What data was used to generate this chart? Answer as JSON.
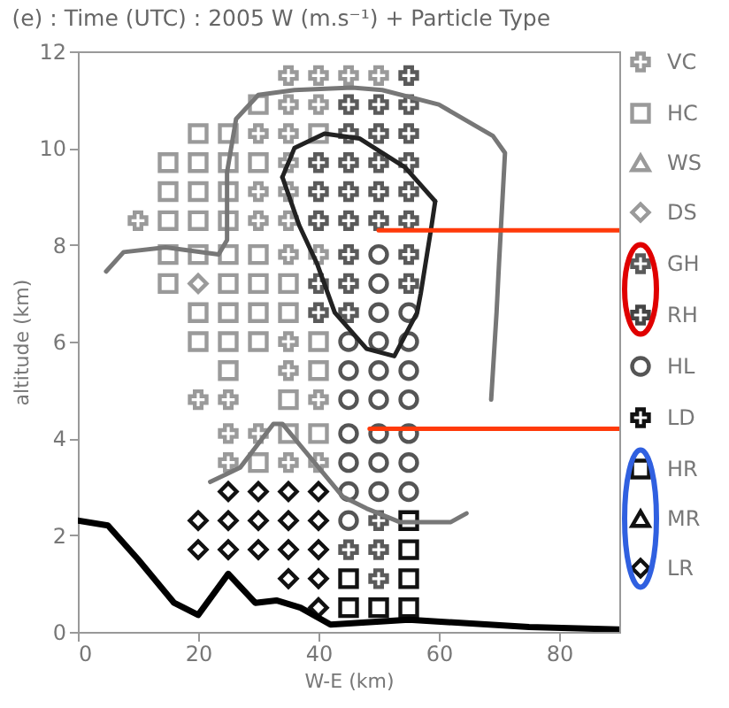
{
  "chart_data": {
    "type": "scatter",
    "title": "(e) : Time (UTC) : 2005 W (m.s⁻¹) + Particle Type",
    "xlabel": "W-E (km)",
    "ylabel": "altitude (km)",
    "xlim": [
      0,
      90
    ],
    "ylim": [
      0,
      12
    ],
    "xticks": [
      0,
      20,
      40,
      60,
      80
    ],
    "yticks": [
      0,
      2,
      4,
      6,
      8,
      10,
      12
    ],
    "legend": "right",
    "series": [
      {
        "name": "VC",
        "color": "#9a9a9a",
        "marker": "cross",
        "x": [
          35,
          40,
          45,
          50,
          35,
          40,
          30,
          35,
          35,
          30,
          35,
          10,
          30,
          35,
          35,
          40,
          35,
          35,
          20,
          25,
          40,
          25,
          30,
          25,
          35,
          40
        ],
        "values": [
          11.5,
          11.5,
          11.5,
          11.5,
          10.9,
          10.9,
          10.3,
          10.3,
          9.7,
          9.1,
          9.1,
          8.5,
          8.5,
          8.5,
          7.8,
          7.8,
          6.0,
          5.4,
          4.8,
          4.8,
          4.8,
          4.1,
          4.1,
          3.5,
          3.5,
          3.5
        ]
      },
      {
        "name": "HC",
        "color": "#9a9a9a",
        "marker": "square",
        "x": [
          30,
          20,
          25,
          40,
          15,
          20,
          25,
          30,
          15,
          20,
          25,
          15,
          20,
          25,
          15,
          20,
          25,
          30,
          15,
          25,
          30,
          35,
          20,
          25,
          30,
          35,
          20,
          25,
          30,
          40,
          25,
          40,
          35,
          35,
          40,
          30
        ],
        "values": [
          10.9,
          10.3,
          10.3,
          10.3,
          9.7,
          9.7,
          9.7,
          9.7,
          9.1,
          9.1,
          9.1,
          8.5,
          8.5,
          8.5,
          7.8,
          7.8,
          7.8,
          7.8,
          7.2,
          7.2,
          7.2,
          7.2,
          6.6,
          6.6,
          6.6,
          6.6,
          6.0,
          6.0,
          6.0,
          6.0,
          5.4,
          5.4,
          4.8,
          4.1,
          4.1,
          3.5
        ]
      },
      {
        "name": "WS",
        "color": "#9a9a9a",
        "marker": "triangle"
      },
      {
        "name": "DS",
        "color": "#9a9a9a",
        "marker": "diamond",
        "x": [
          20
        ],
        "values": [
          7.2
        ]
      },
      {
        "name": "GH",
        "color": "#5a5a5a",
        "marker": "cross",
        "x": [
          55,
          45,
          50,
          55,
          45,
          50,
          55,
          40,
          45,
          50,
          55,
          40,
          45,
          50,
          55,
          40,
          45,
          50,
          55,
          45,
          55,
          40,
          45,
          55,
          40,
          45,
          50,
          45,
          50,
          50
        ],
        "values": [
          11.5,
          10.9,
          10.9,
          10.9,
          10.3,
          10.3,
          10.3,
          9.7,
          9.7,
          9.7,
          9.7,
          9.1,
          9.1,
          9.1,
          9.1,
          8.5,
          8.5,
          8.5,
          8.5,
          7.8,
          7.8,
          7.2,
          7.2,
          7.2,
          6.6,
          6.6,
          2.3,
          1.7,
          1.7,
          1.1
        ]
      },
      {
        "name": "RH",
        "color": "#444444",
        "marker": "cross"
      },
      {
        "name": "HL",
        "color": "#555555",
        "marker": "circle",
        "x": [
          50,
          50,
          50,
          55,
          45,
          50,
          55,
          45,
          50,
          55,
          45,
          50,
          55,
          45,
          50,
          55,
          45,
          50,
          55,
          45,
          50,
          55,
          45
        ],
        "values": [
          7.8,
          7.2,
          6.6,
          6.6,
          6.0,
          6.0,
          6.0,
          5.4,
          5.4,
          5.4,
          4.8,
          4.8,
          4.8,
          4.1,
          4.1,
          4.1,
          3.5,
          3.5,
          3.5,
          2.9,
          2.9,
          2.9,
          2.3
        ]
      },
      {
        "name": "LD",
        "color": "#111111",
        "marker": "cross"
      },
      {
        "name": "HR",
        "color": "#111111",
        "marker": "square",
        "x": [
          55,
          55,
          45,
          55,
          45,
          50,
          55
        ],
        "values": [
          2.3,
          1.7,
          1.1,
          1.1,
          0.5,
          0.5,
          0.5
        ]
      },
      {
        "name": "MR",
        "color": "#111111",
        "marker": "triangle"
      },
      {
        "name": "LR",
        "color": "#111111",
        "marker": "diamond",
        "x": [
          25,
          30,
          35,
          40,
          20,
          25,
          30,
          35,
          40,
          20,
          25,
          30,
          35,
          40,
          35,
          40,
          40
        ],
        "values": [
          2.9,
          2.9,
          2.9,
          2.9,
          2.3,
          2.3,
          2.3,
          2.3,
          2.3,
          1.7,
          1.7,
          1.7,
          1.7,
          1.7,
          1.1,
          1.1,
          0.5
        ]
      },
      {
        "type": "line",
        "color": "#000000",
        "x": [
          0,
          5,
          10,
          16,
          20,
          25,
          29.5,
          33,
          37,
          42,
          55,
          75,
          90
        ],
        "values": [
          2.3,
          2.2,
          1.5,
          0.6,
          0.35,
          1.2,
          0.6,
          0.65,
          0.5,
          0.15,
          0.25,
          0.1,
          0.05
        ]
      },
      {
        "type": "line",
        "color": "#777777",
        "x": [
          4.7,
          7.6,
          14.6,
          23.4,
          24.8,
          24.8,
          26.3,
          30,
          36,
          45.6,
          50.6,
          60,
          69,
          71,
          70,
          69.6,
          68.7
        ],
        "values": [
          7.45,
          7.85,
          7.95,
          7.8,
          8.1,
          9.5,
          10.6,
          11.1,
          11.2,
          11.25,
          11.2,
          10.9,
          10.25,
          9.9,
          7.6,
          6.6,
          4.8
        ]
      },
      {
        "type": "line",
        "color": "#222222",
        "x": [
          34,
          36,
          41,
          46.8,
          54.4,
          59.4
        ],
        "values": [
          9.4,
          10.0,
          10.3,
          10.2,
          9.6,
          8.9
        ]
      },
      {
        "type": "line",
        "color": "#222222",
        "x": [
          34,
          36.8,
          39.8,
          42.7,
          48,
          52.6,
          56.4,
          57,
          58.8,
          59.4
        ],
        "values": [
          9.4,
          8.4,
          7.6,
          6.6,
          5.85,
          5.7,
          6.6,
          7.0,
          8.4,
          8.9
        ]
      },
      {
        "type": "line",
        "color": "#777777",
        "x": [
          22,
          27,
          32.5,
          34,
          39,
          44,
          48,
          53.5,
          62,
          64.6
        ],
        "values": [
          3.1,
          3.4,
          4.3,
          4.3,
          3.55,
          2.8,
          2.55,
          2.27,
          2.27,
          2.45
        ]
      },
      {
        "type": "line",
        "color": "#ff3a0a",
        "x": [
          50,
          90
        ],
        "values": [
          8.3,
          8.3
        ]
      },
      {
        "type": "line",
        "color": "#ff3a0a",
        "x": [
          48.5,
          90
        ],
        "values": [
          4.2,
          4.2
        ]
      }
    ]
  }
}
